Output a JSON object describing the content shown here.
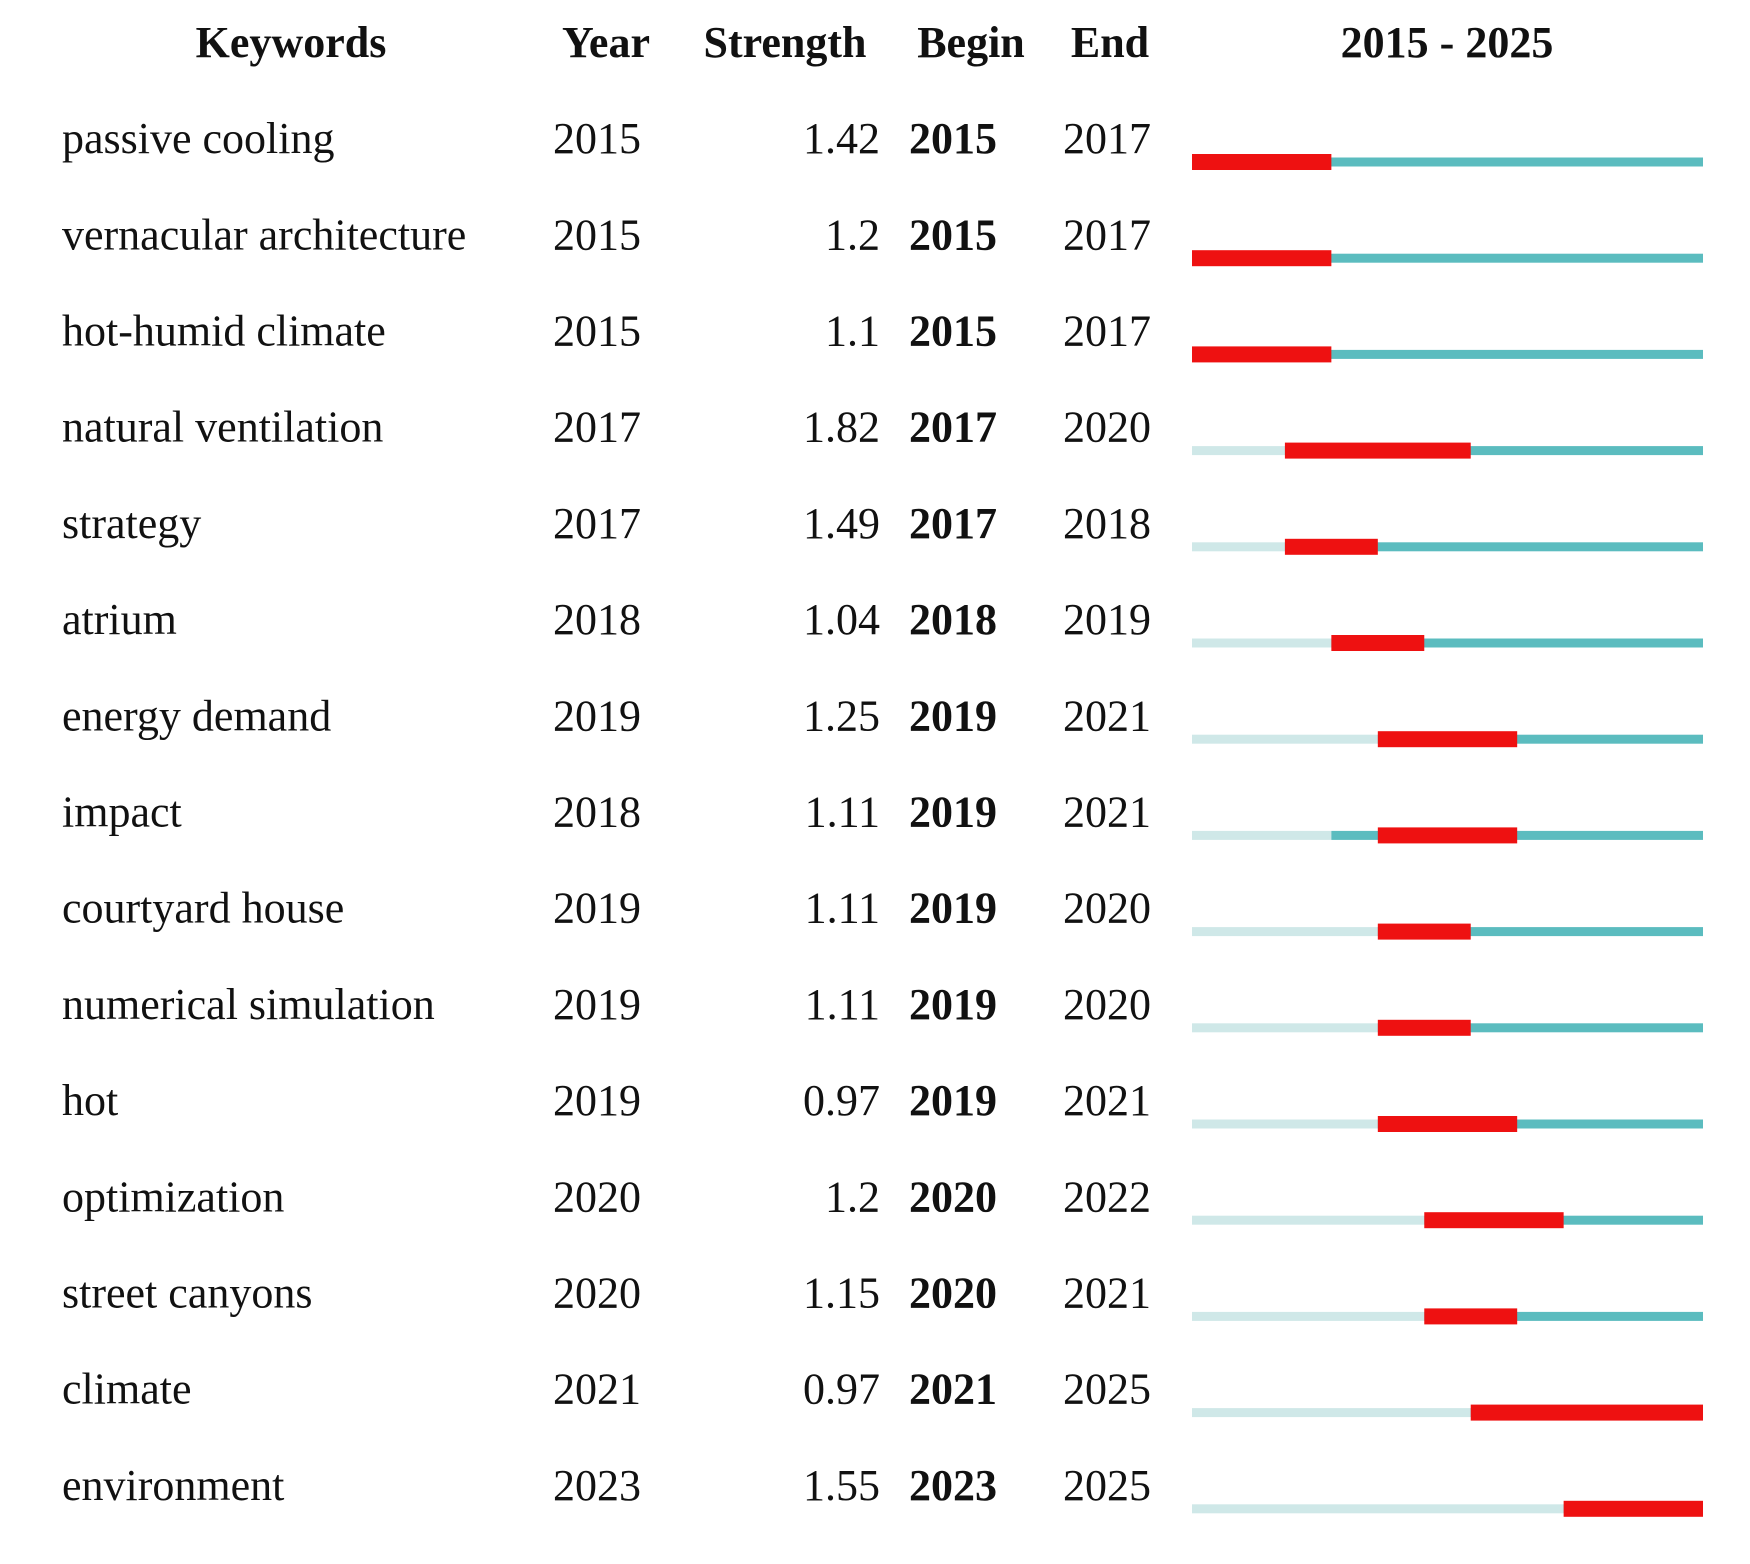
{
  "chart_data": {
    "type": "burst",
    "headers": {
      "keyword": "Keywords",
      "year": "Year",
      "strength": "Strength",
      "begin": "Begin",
      "end": "End",
      "range": "2015 - 2025"
    },
    "xlim": [
      2015,
      2025
    ],
    "colors": {
      "burst": "#ee1111",
      "active": "#5bbcbf",
      "inactive": "#cfe8e8"
    },
    "rows": [
      {
        "keyword": "passive cooling",
        "year": 2015,
        "strength": 1.42,
        "begin": 2015,
        "end": 2017
      },
      {
        "keyword": "vernacular architecture",
        "year": 2015,
        "strength": 1.2,
        "begin": 2015,
        "end": 2017
      },
      {
        "keyword": "hot-humid climate",
        "year": 2015,
        "strength": 1.1,
        "begin": 2015,
        "end": 2017
      },
      {
        "keyword": "natural ventilation",
        "year": 2017,
        "strength": 1.82,
        "begin": 2017,
        "end": 2020
      },
      {
        "keyword": "strategy",
        "year": 2017,
        "strength": 1.49,
        "begin": 2017,
        "end": 2018
      },
      {
        "keyword": "atrium",
        "year": 2018,
        "strength": 1.04,
        "begin": 2018,
        "end": 2019
      },
      {
        "keyword": "energy demand",
        "year": 2019,
        "strength": 1.25,
        "begin": 2019,
        "end": 2021
      },
      {
        "keyword": "impact",
        "year": 2018,
        "strength": 1.11,
        "begin": 2019,
        "end": 2021
      },
      {
        "keyword": "courtyard house",
        "year": 2019,
        "strength": 1.11,
        "begin": 2019,
        "end": 2020
      },
      {
        "keyword": "numerical simulation",
        "year": 2019,
        "strength": 1.11,
        "begin": 2019,
        "end": 2020
      },
      {
        "keyword": "hot",
        "year": 2019,
        "strength": 0.97,
        "begin": 2019,
        "end": 2021
      },
      {
        "keyword": "optimization",
        "year": 2020,
        "strength": 1.2,
        "begin": 2020,
        "end": 2022
      },
      {
        "keyword": "street canyons",
        "year": 2020,
        "strength": 1.15,
        "begin": 2020,
        "end": 2021
      },
      {
        "keyword": "climate",
        "year": 2021,
        "strength": 0.97,
        "begin": 2021,
        "end": 2025
      },
      {
        "keyword": "environment",
        "year": 2023,
        "strength": 1.55,
        "begin": 2023,
        "end": 2025
      }
    ]
  }
}
